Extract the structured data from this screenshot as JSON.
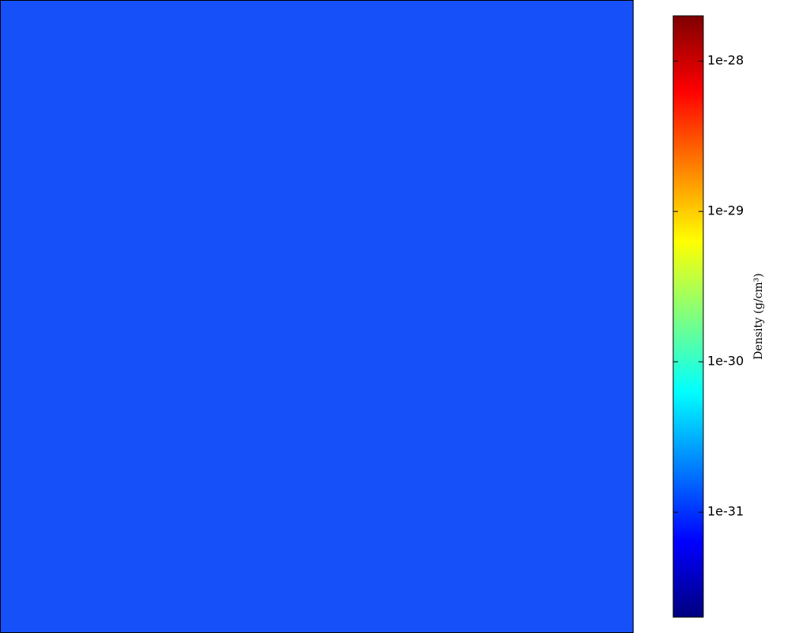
{
  "chart_data": {
    "type": "colorbar",
    "colorbar_label": "Density (g/cm³)",
    "log_scale": true,
    "colormap": "jet",
    "clim": [
      2e-32,
      2e-28
    ],
    "ticks": [
      1e-28,
      1e-29,
      1e-30,
      1e-31
    ]
  }
}
